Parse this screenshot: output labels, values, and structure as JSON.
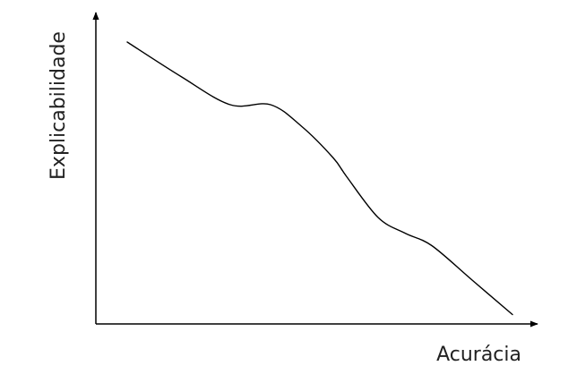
{
  "chart_data": {
    "type": "line",
    "xlabel": "Acurácia",
    "ylabel": "Explicabilidade",
    "xlim": [
      0,
      1
    ],
    "ylim": [
      0,
      1
    ],
    "grid": false,
    "series": [
      {
        "x": [
          0.07,
          0.19,
          0.3,
          0.39,
          0.46,
          0.53,
          0.56,
          0.63,
          0.69,
          0.75,
          0.84,
          0.93
        ],
        "y": [
          0.9,
          0.79,
          0.7,
          0.7,
          0.63,
          0.53,
          0.47,
          0.34,
          0.29,
          0.25,
          0.14,
          0.03
        ]
      }
    ]
  },
  "colors": {
    "axis": "#000000",
    "line": "#000000",
    "text": "#222222"
  }
}
